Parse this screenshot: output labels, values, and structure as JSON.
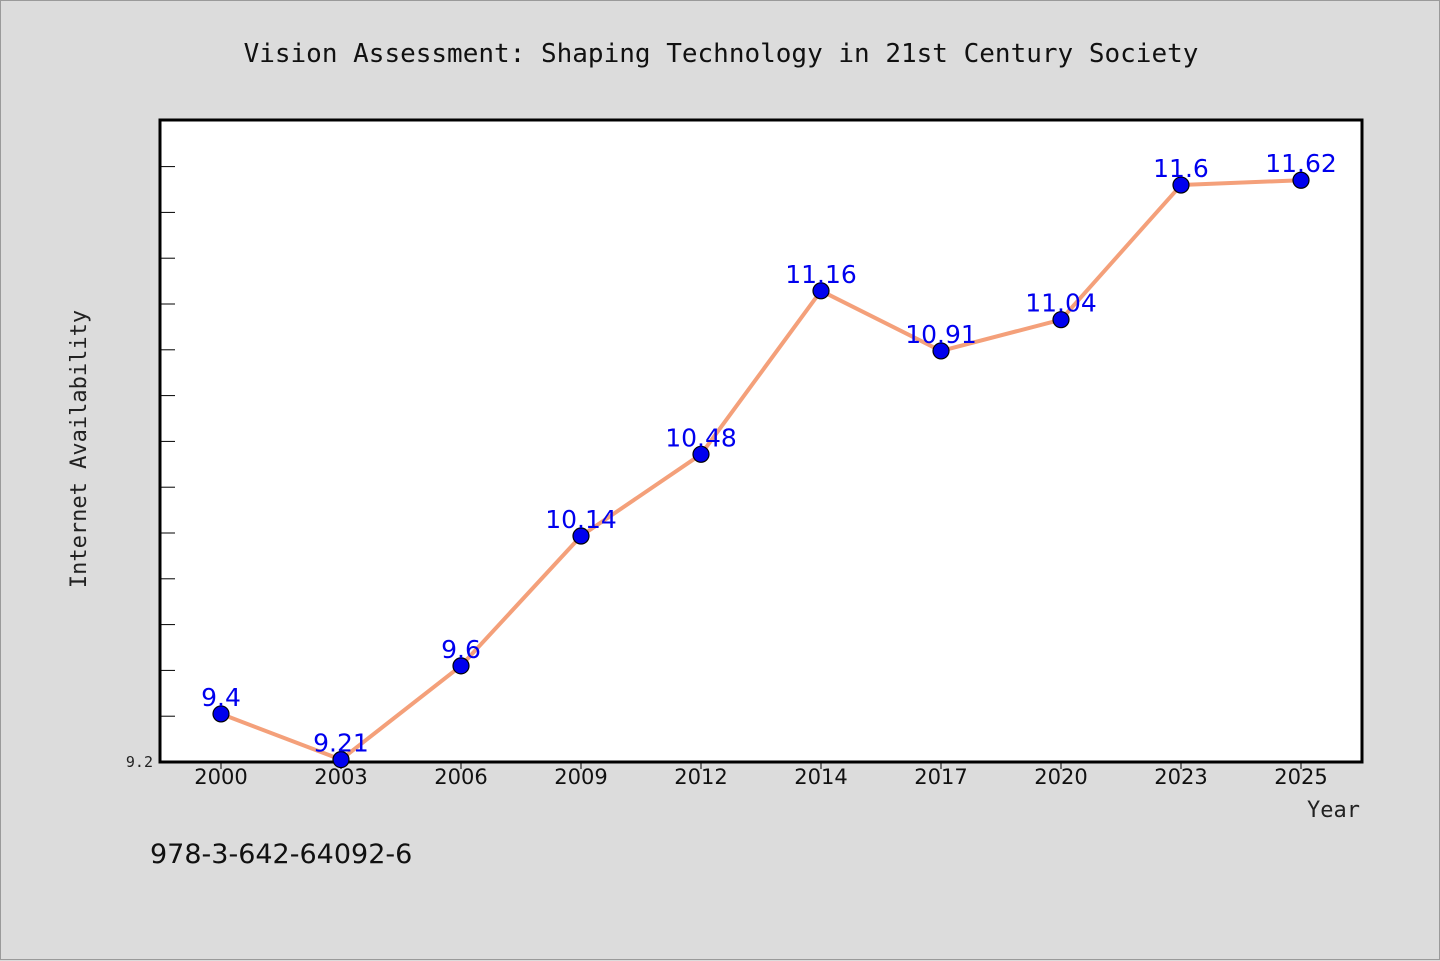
{
  "chart_data": {
    "type": "line",
    "title": "Vision Assessment: Shaping Technology in 21st Century Society",
    "xlabel": "Year",
    "ylabel": "Internet Availability",
    "categories": [
      "2000",
      "2003",
      "2006",
      "2009",
      "2012",
      "2014",
      "2017",
      "2020",
      "2023",
      "2025"
    ],
    "series": [
      {
        "values": [
          9.4,
          9.21,
          9.6,
          10.14,
          10.48,
          11.16,
          10.91,
          11.04,
          11.6,
          11.62
        ],
        "data_labels": [
          "9.4",
          "9.21",
          "9.6",
          "10.14",
          "10.48",
          "11.16",
          "10.91",
          "11.04",
          "11.6",
          "11.62"
        ],
        "line_color": "#f4a07a",
        "marker_color": "#0000ee",
        "label_color": "#0000ee"
      }
    ],
    "ylim": [
      9.2,
      12.0
    ],
    "ytick_labels": [
      "9.2"
    ],
    "grid": false,
    "legend": "none"
  },
  "footer": {
    "isbn": "978-3-642-64092-6"
  },
  "colors": {
    "background": "#dcdcdc",
    "plot_background": "#ffffff",
    "axis": "#000000"
  }
}
